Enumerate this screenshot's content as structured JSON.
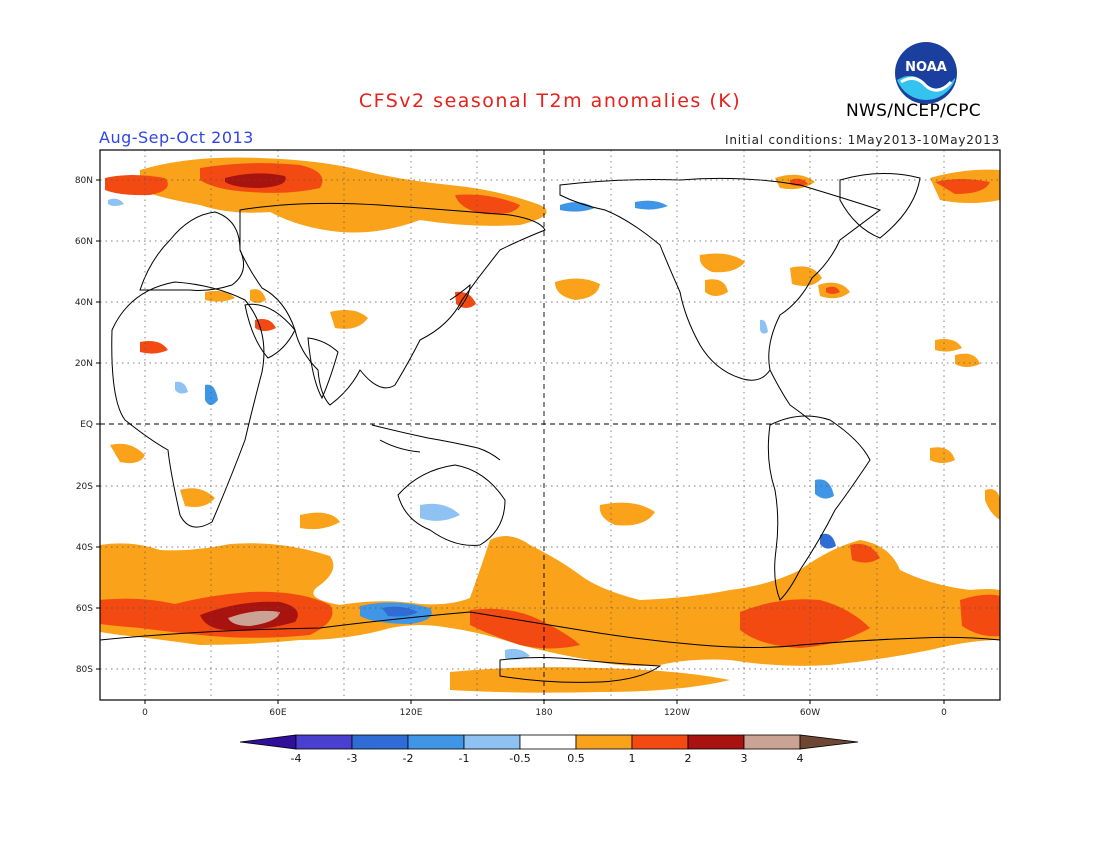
{
  "title": "CFSv2 seasonal T2m anomalies (K)",
  "period": "Aug-Sep-Oct 2013",
  "initial_conditions": "Initial conditions: 1May2013-10May2013",
  "org": "NWS/NCEP/CPC",
  "logo_text": "NOAA",
  "lat_labels": [
    "80N",
    "60N",
    "40N",
    "20N",
    "EQ",
    "20S",
    "40S",
    "60S",
    "80S"
  ],
  "lon_labels": [
    "0",
    "60E",
    "120E",
    "180",
    "120W",
    "60W",
    "0"
  ],
  "colorbar": {
    "labels": [
      "-4",
      "-3",
      "-2",
      "-1",
      "-0.5",
      "0.5",
      "1",
      "2",
      "3",
      "4"
    ],
    "colors": [
      "#30109a",
      "#4a3fcf",
      "#2f6cd6",
      "#3f95e6",
      "#8ec2f2",
      "#ffffff",
      "#f9a21a",
      "#f34a12",
      "#a8120f",
      "#cba394",
      "#6e4634"
    ]
  }
}
